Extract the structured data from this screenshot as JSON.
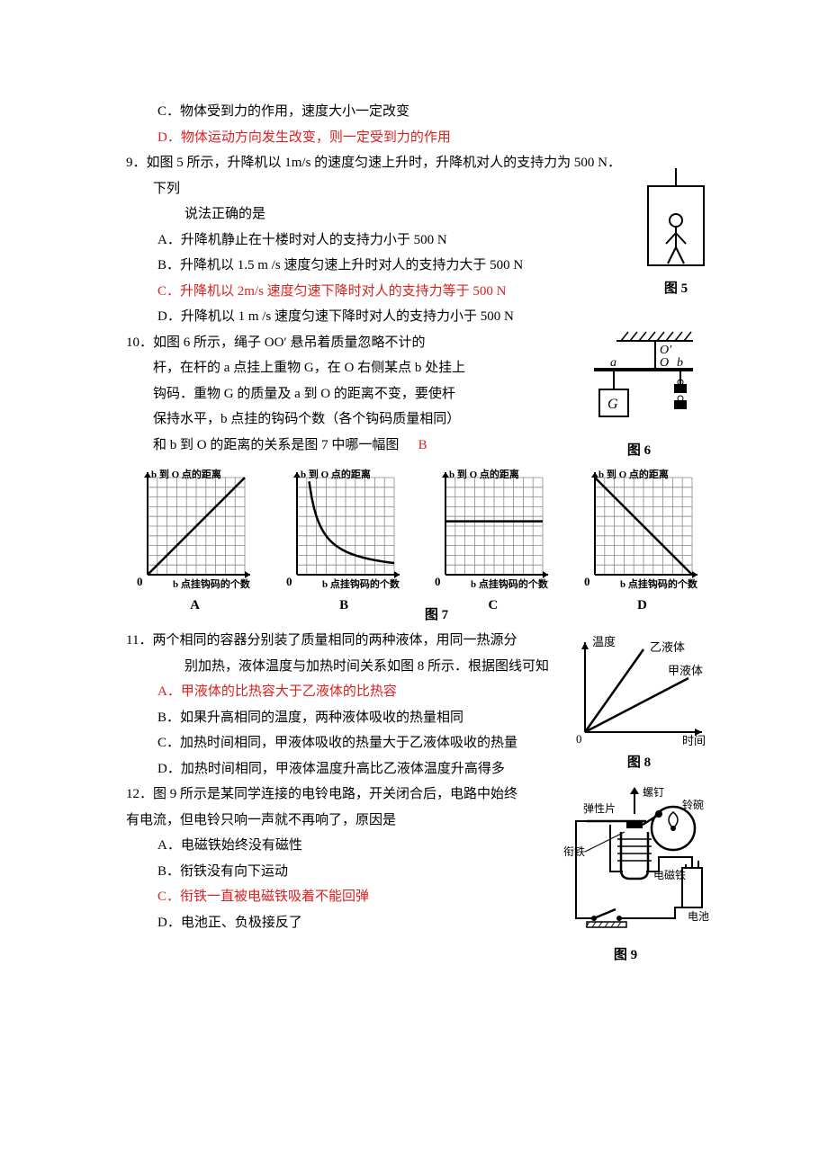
{
  "q8": {
    "optC": "C．物体受到力的作用，速度大小一定改变",
    "optD": "D．物体运动方向发生改变，则一定受到力的作用"
  },
  "q9": {
    "stem1": "9．如图 5 所示，升降机以 1m/s 的速度匀速上升时，升降机对人的支持力为 500 N．下列",
    "stem2": "说法正确的是",
    "optA": "A．升降机静止在十楼时对人的支持力小于 500 N",
    "optB": "B．升降机以 1.5 m /s 速度匀速上升时对人的支持力大于 500 N",
    "optC": "C．升降机以 2m/s 速度匀速下降时对人的支持力等于 500 N",
    "optD": "D．升降机以 1 m /s 速度匀速下降时对人的支持力小于 500 N",
    "figcap": "图 5"
  },
  "q10": {
    "line1": "10．如图 6 所示，绳子 OO′ 悬吊着质量忽略不计的",
    "line2": "杆，在杆的 a 点挂上重物 G，在 O 右侧某点 b 处挂上",
    "line3": "钩码．重物 G 的质量及 a 到 O 的距离不变，要使杆",
    "line4": "保持水平，b 点挂的钩码个数（各个钩码质量相同）",
    "line5_pre": "和 b 到 O 的距离的关系是图 7 中哪一幅图",
    "answer": "B",
    "figcap": "图 6",
    "ylabel": "b 到 O 点的距离",
    "xlabel": "b 点挂钩码的个数",
    "zero": "0",
    "labA": "A",
    "labB": "B",
    "labC": "C",
    "labD": "D",
    "fig7": "图 7",
    "graph": {
      "grid_color": "#888",
      "axis_color": "#000",
      "w": 110,
      "h": 120,
      "grid_n": 10,
      "fontsize": 11
    }
  },
  "q11": {
    "stem1": "11．两个相同的容器分别装了质量相同的两种液体，用同一热源分",
    "stem2": "别加热，液体温度与加热时间关系如图 8 所示．根据图线可知",
    "optA": "A．甲液体的比热容大于乙液体的比热容",
    "optB": "B．如果升高相同的温度，两种液体吸收的热量相同",
    "optC": "C．加热时间相同，甲液体吸收的热量大于乙液体吸收的热量",
    "optD": "D．加热时间相同，甲液体温度升高比乙液体温度升高得多",
    "ylab": "温度",
    "xlab": "时间",
    "l1": "乙液体",
    "l2": "甲液体",
    "zero": "0",
    "figcap": "图 8"
  },
  "q12": {
    "stem1": "12．图 9 所示是某同学连接的电铃电路，开关闭合后，电路中始终",
    "stem2": "有电流，但电铃只响一声就不再响了，原因是",
    "optA": "A．电磁铁始终没有磁性",
    "optB": "B．衔铁没有向下运动",
    "optC": "C．衔铁一直被电磁铁吸着不能回弹",
    "optD": "D．电池正、负极接反了",
    "figcap": "图 9",
    "labels": {
      "screw": "螺钉",
      "spring": "弹性片",
      "bowl": "铃碗",
      "arm": "衔铁",
      "em": "电磁铁",
      "bat": "电池"
    }
  }
}
